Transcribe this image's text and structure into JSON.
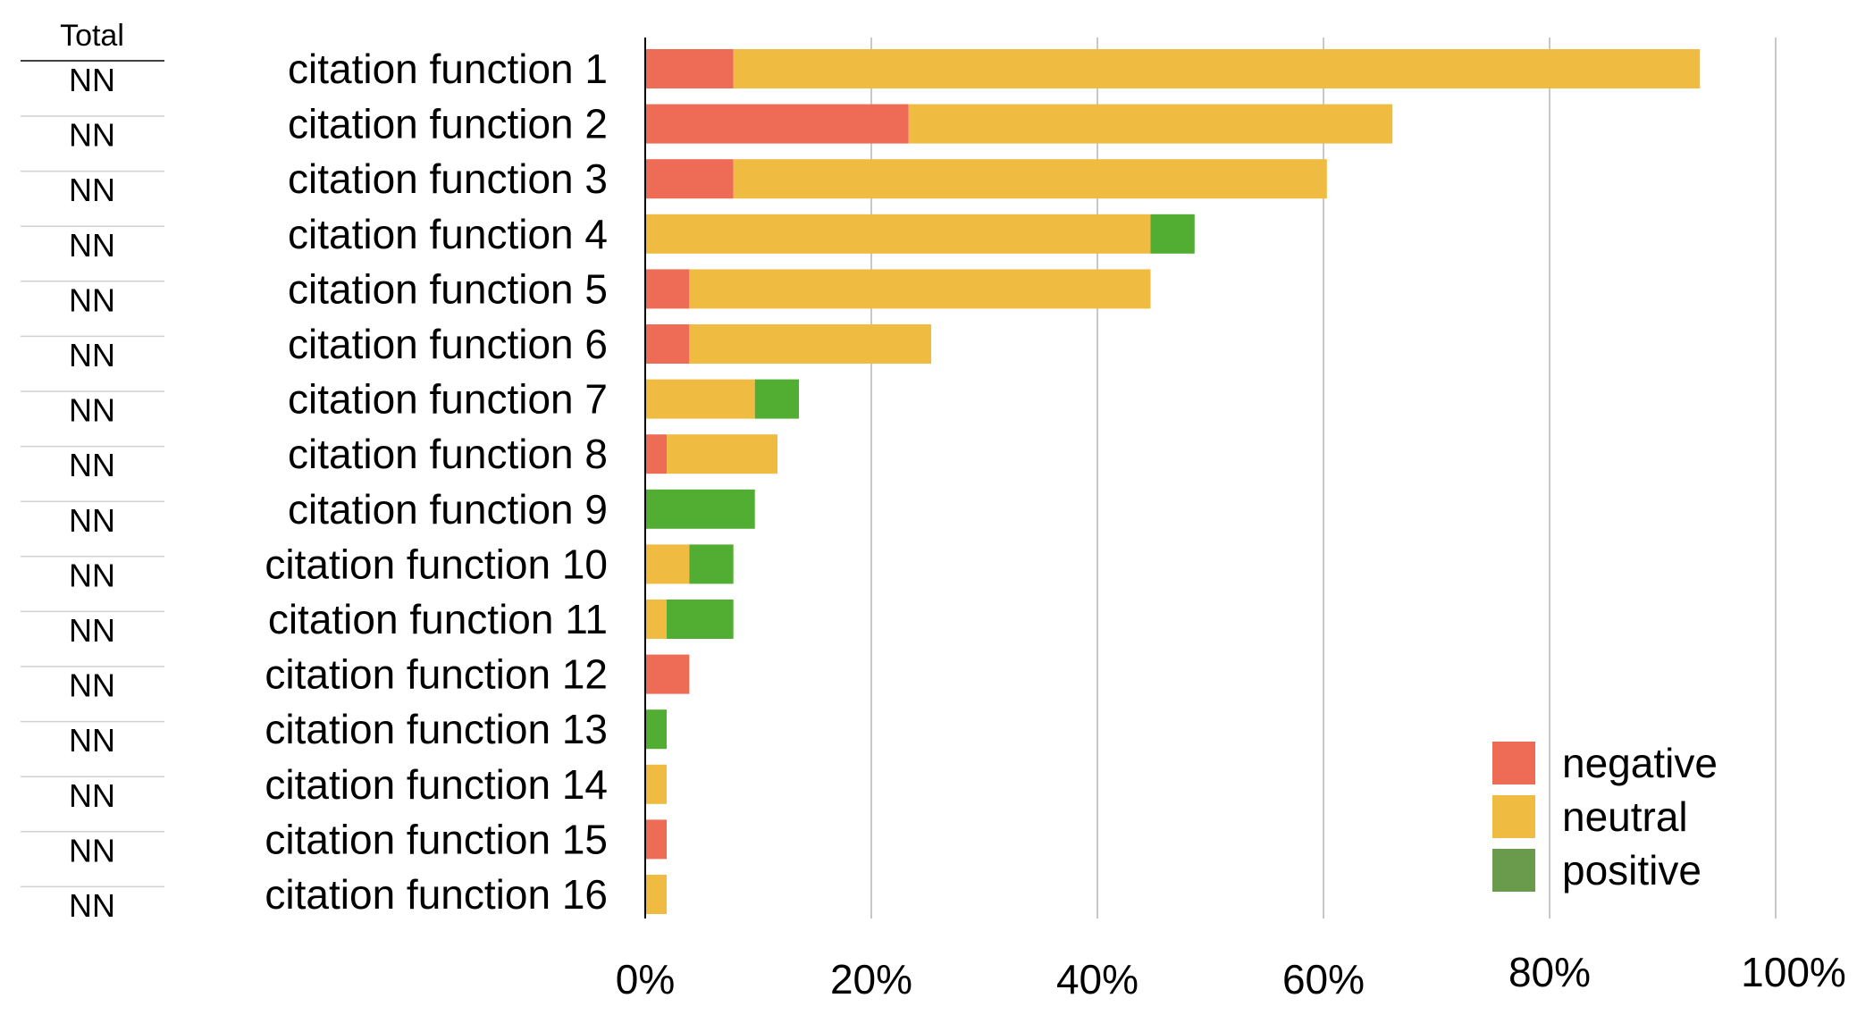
{
  "total_table": {
    "header": "Total",
    "values": [
      "NN",
      "NN",
      "NN",
      "NN",
      "NN",
      "NN",
      "NN",
      "NN",
      "NN",
      "NN",
      "NN",
      "NN",
      "NN",
      "NN",
      "NN",
      "NN"
    ]
  },
  "chart_data": {
    "type": "bar",
    "orientation": "horizontal",
    "stacked": true,
    "categories": [
      "citation function 1",
      "citation function 2",
      "citation function 3",
      "citation function 4",
      "citation function 5",
      "citation function 6",
      "citation function 7",
      "citation function 8",
      "citation function 9",
      "citation function 10",
      "citation function 11",
      "citation function 12",
      "citation function 13",
      "citation function 14",
      "citation function 15",
      "citation function 16"
    ],
    "series": [
      {
        "name": "negative",
        "color": "#ee6b55",
        "values": [
          7.8,
          23.3,
          7.8,
          0,
          3.9,
          3.9,
          0,
          1.9,
          0,
          0,
          0,
          3.9,
          0,
          0,
          1.9,
          0
        ]
      },
      {
        "name": "neutral",
        "color": "#efbb41",
        "values": [
          85.5,
          42.8,
          52.5,
          44.7,
          40.8,
          21.4,
          9.7,
          9.8,
          0,
          3.9,
          1.9,
          0,
          0,
          1.9,
          0,
          1.9
        ]
      },
      {
        "name": "positive",
        "color": "#52ad33",
        "legend_color": "#6a9a4c",
        "values": [
          0,
          0,
          0,
          3.9,
          0,
          0,
          3.9,
          0,
          9.7,
          3.9,
          5.9,
          0,
          1.9,
          0,
          0,
          0
        ]
      }
    ],
    "xlim": [
      0,
      100
    ],
    "x_ticks": [
      "0%",
      "20%",
      "40%",
      "60%",
      "80%",
      "100%"
    ],
    "xlabel": "",
    "ylabel": "",
    "title": "",
    "grid": true,
    "legend_position": "bottom-right"
  }
}
